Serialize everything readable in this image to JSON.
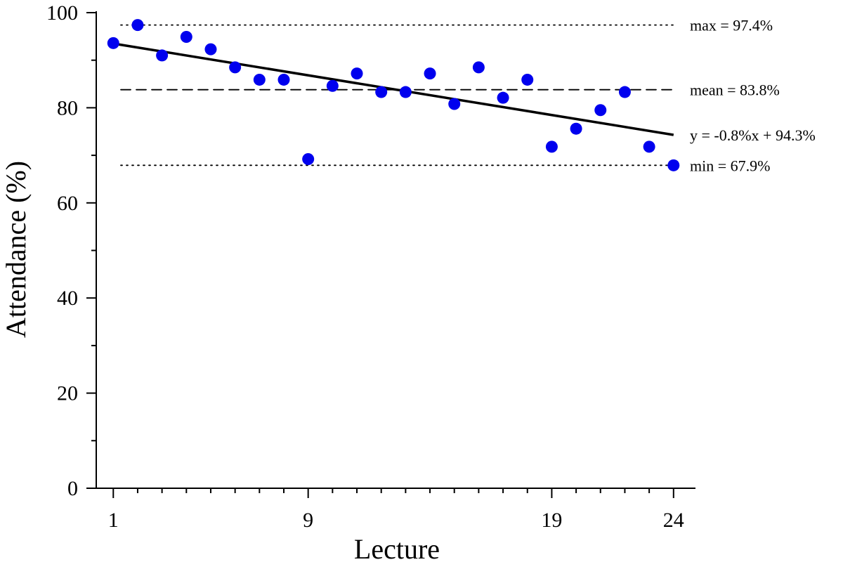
{
  "chart_data": {
    "type": "scatter",
    "title": "",
    "xlabel": "Lecture",
    "ylabel": "Attendance (%)",
    "xlim": [
      0.3,
      24.9
    ],
    "ylim": [
      0,
      100
    ],
    "x_ticks": [
      1,
      9,
      19,
      24
    ],
    "x_tick_labels": [
      "1",
      "9",
      "19",
      "24"
    ],
    "x_minor_ticks": [
      2,
      3,
      4,
      5,
      6,
      7,
      8,
      10,
      11,
      12,
      13,
      14,
      15,
      16,
      17,
      18,
      20,
      21,
      22,
      23
    ],
    "y_ticks": [
      0,
      20,
      40,
      60,
      80,
      100
    ],
    "y_tick_labels": [
      "0",
      "20",
      "40",
      "60",
      "80",
      "100"
    ],
    "y_minor_ticks": [
      10,
      30,
      50,
      70,
      90
    ],
    "series": [
      {
        "name": "Attendance",
        "color": "#0000ee",
        "x": [
          1,
          2,
          3,
          4,
          5,
          6,
          7,
          8,
          9,
          10,
          11,
          12,
          13,
          14,
          15,
          16,
          17,
          18,
          19,
          20,
          21,
          22,
          23,
          24
        ],
        "values": [
          93.6,
          97.4,
          91.0,
          94.9,
          92.3,
          88.5,
          85.9,
          85.9,
          69.2,
          84.6,
          87.2,
          83.3,
          83.3,
          87.2,
          80.8,
          88.5,
          82.1,
          85.9,
          71.8,
          75.6,
          79.5,
          83.3,
          71.8,
          67.9
        ]
      }
    ],
    "trend_line": {
      "slope": -0.8,
      "intercept": 94.3,
      "x_start": 1,
      "x_end": 24,
      "y_start": 93.5,
      "y_end": 74.3,
      "label": "y = -0.8%x + 94.3%"
    },
    "reference_lines": [
      {
        "kind": "max",
        "value": 97.4,
        "style": "dotted",
        "label": "max = 97.4%"
      },
      {
        "kind": "mean",
        "value": 83.8,
        "style": "dashed",
        "label": "mean = 83.8%"
      },
      {
        "kind": "min",
        "value": 67.9,
        "style": "dotted",
        "label": "min = 67.9%"
      }
    ],
    "grid": false
  }
}
